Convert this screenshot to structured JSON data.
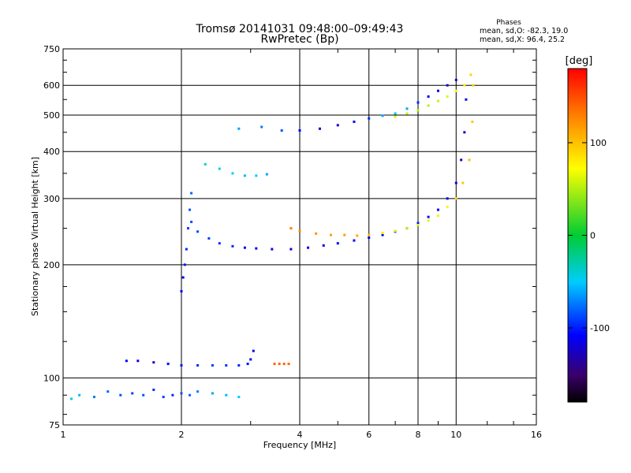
{
  "chart_data": {
    "type": "scatter",
    "title": "Tromsø 20141031 09:48:00–09:49:43",
    "subtitle": "RwPretec (Bp)",
    "xlabel": "Frequency [MHz]",
    "ylabel": "Stationary phase Virtual Height [km]",
    "x_scale": "log",
    "y_scale": "log",
    "xlim": [
      1,
      16
    ],
    "ylim": [
      75,
      750
    ],
    "x_ticks": [
      "1",
      "2",
      "4",
      "6",
      "8",
      "10",
      "16"
    ],
    "y_ticks": [
      "75",
      "100",
      "200",
      "300",
      "400",
      "500",
      "600",
      "750"
    ],
    "grid": true,
    "phases": {
      "heading": "Phases",
      "line_o": "mean, sd,O:  -82.3, 19.0",
      "line_x": "mean, sd,X:  96.4, 25.2"
    },
    "colorbar": {
      "label": "[deg]",
      "min": -180,
      "max": 180,
      "ticks": [
        "100",
        "0",
        "-100"
      ]
    },
    "series": [
      {
        "x": [
          1.05,
          1.1,
          1.2,
          1.3,
          1.4,
          1.5,
          1.6,
          1.7,
          1.8,
          1.9,
          2.0,
          2.1,
          2.2,
          2.4,
          2.6,
          2.8
        ],
        "phase": [
          -40,
          -55,
          -70,
          -75,
          -80,
          -85,
          -80,
          -90,
          -85,
          -90,
          -80,
          -75,
          -70,
          -60,
          -55,
          -50
        ],
        "y": [
          88,
          90,
          89,
          92,
          90,
          91,
          90,
          93,
          89,
          90,
          91,
          90,
          92,
          91,
          90,
          89
        ]
      },
      {
        "x": [
          1.45,
          1.55,
          1.7,
          1.85,
          2.0,
          2.2,
          2.4,
          2.6,
          2.8,
          2.95,
          3.0,
          3.05
        ],
        "phase": [
          -100,
          -105,
          -110,
          -100,
          -95,
          -90,
          -85,
          -88,
          -92,
          -95,
          -100,
          -105
        ],
        "y": [
          111,
          111,
          110,
          109,
          108,
          108,
          108,
          108,
          108,
          109,
          112,
          118
        ]
      },
      {
        "x": [
          3.45,
          3.55,
          3.65,
          3.75
        ],
        "phase": [
          140,
          140,
          140,
          140
        ],
        "y": [
          109,
          109,
          109,
          109
        ]
      },
      {
        "x": [
          2.0,
          2.02,
          2.04,
          2.06,
          2.08,
          2.1,
          2.12
        ],
        "phase": [
          -100,
          -100,
          -95,
          -90,
          -85,
          -80,
          -75
        ],
        "y": [
          170,
          185,
          200,
          220,
          250,
          280,
          310
        ]
      },
      {
        "x": [
          2.12,
          2.2,
          2.35,
          2.5,
          2.7,
          2.9,
          3.1,
          3.4,
          3.8,
          4.2,
          4.6,
          5.0,
          5.5,
          6.0,
          6.5,
          7.0,
          7.5,
          8.0,
          8.5,
          9.0,
          9.5,
          10.0,
          10.3,
          10.5,
          10.6
        ],
        "phase": [
          -80,
          -82,
          -85,
          -88,
          -90,
          -100,
          -105,
          -108,
          -110,
          -110,
          -105,
          -105,
          -102,
          -100,
          -100,
          -98,
          -96,
          -95,
          -98,
          -100,
          -105,
          -110,
          -115,
          -110,
          -105
        ],
        "y": [
          260,
          245,
          235,
          228,
          224,
          222,
          221,
          220,
          220,
          222,
          225,
          228,
          232,
          236,
          240,
          245,
          250,
          258,
          268,
          280,
          300,
          330,
          380,
          450,
          550
        ]
      },
      {
        "x": [
          3.8,
          4.0,
          4.4,
          4.8,
          5.2,
          5.6,
          6.0,
          6.5,
          7.0,
          7.5,
          8.0,
          8.5,
          9.0,
          9.5,
          10.0,
          10.4,
          10.8,
          11.0,
          11.05
        ],
        "phase": [
          130,
          125,
          120,
          115,
          115,
          110,
          105,
          80,
          60,
          50,
          55,
          60,
          65,
          75,
          85,
          95,
          100,
          95,
          90
        ],
        "y": [
          250,
          246,
          242,
          240,
          240,
          239,
          240,
          243,
          246,
          250,
          255,
          262,
          270,
          285,
          300,
          330,
          380,
          480,
          600
        ]
      },
      {
        "x": [
          2.3,
          2.5,
          2.7,
          2.9,
          3.1,
          3.3
        ],
        "phase": [
          -40,
          -45,
          -50,
          -55,
          -50,
          -60
        ],
        "y": [
          370,
          360,
          350,
          345,
          345,
          348
        ]
      },
      {
        "x": [
          2.8,
          3.2,
          3.6,
          4.0,
          4.5,
          5.0,
          5.5,
          6.0,
          6.5,
          7.0,
          7.5,
          8.0,
          8.5,
          9.0,
          9.5,
          10.0
        ],
        "phase": [
          -60,
          -70,
          -80,
          -100,
          -110,
          -110,
          -100,
          -90,
          -60,
          -40,
          -60,
          -90,
          -100,
          -110,
          -110,
          -120
        ],
        "y": [
          460,
          465,
          455,
          455,
          460,
          470,
          480,
          490,
          498,
          505,
          520,
          540,
          560,
          580,
          600,
          620
        ]
      },
      {
        "x": [
          7.0,
          7.5,
          8.0,
          8.5,
          9.0,
          9.5,
          10.0,
          10.5,
          10.9
        ],
        "phase": [
          60,
          55,
          50,
          50,
          55,
          60,
          70,
          80,
          90
        ],
        "y": [
          495,
          505,
          515,
          530,
          545,
          560,
          580,
          600,
          640
        ]
      }
    ]
  }
}
